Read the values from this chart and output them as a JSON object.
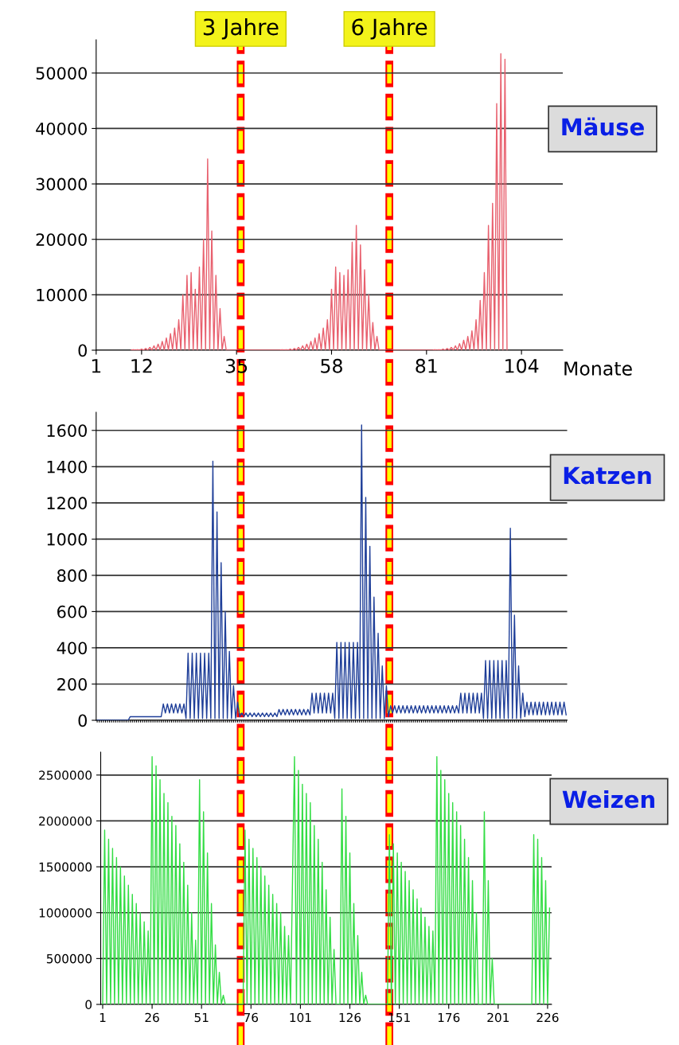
{
  "chart_data": [
    {
      "type": "line",
      "xlabel": "Monate",
      "xlim": [
        1,
        114
      ],
      "xticks": [
        1,
        12,
        35,
        58,
        81,
        104
      ],
      "ylim": [
        0,
        56000
      ],
      "yticks": [
        0,
        10000,
        20000,
        30000,
        40000,
        50000
      ],
      "grid": "y",
      "ref_lines": [
        {
          "axis": "x",
          "value": 36,
          "label": "3 Jahre",
          "color": "#ffff00",
          "line_style": "dashed"
        },
        {
          "axis": "x",
          "value": 72,
          "label": "6 Jahre",
          "color": "#ffff00",
          "line_style": "dashed"
        }
      ],
      "series": [
        {
          "name": "Mäuse",
          "color": "#e8606e",
          "x": [
            9.5,
            10,
            10.5,
            11,
            11.5,
            12,
            12.5,
            13,
            13.5,
            14,
            14.5,
            15,
            15.5,
            16,
            16.5,
            17,
            17.5,
            18,
            18.5,
            19,
            19.5,
            20,
            20.5,
            21,
            21.5,
            22,
            22.5,
            23,
            23.5,
            24,
            24.5,
            25,
            25.5,
            26,
            26.5,
            27,
            27.5,
            28,
            28.5,
            29,
            29.5,
            30,
            30.5,
            31,
            31.5,
            32,
            32.5,
            45.5,
            46,
            46.5,
            47,
            47.5,
            48,
            48.5,
            49,
            49.5,
            50,
            50.5,
            51,
            51.5,
            52,
            52.5,
            53,
            53.5,
            54,
            54.5,
            55,
            55.5,
            56,
            56.5,
            57,
            57.5,
            58,
            58.5,
            59,
            59.5,
            60,
            60.5,
            61,
            61.5,
            62,
            62.5,
            63,
            63.5,
            64,
            64.5,
            65,
            65.5,
            66,
            66.5,
            67,
            67.5,
            68,
            68.5,
            69,
            69.5,
            82.5,
            83,
            83.5,
            84,
            84.5,
            85,
            85.5,
            86,
            86.5,
            87,
            87.5,
            88,
            88.5,
            89,
            89.5,
            90,
            90.5,
            91,
            91.5,
            92,
            92.5,
            93,
            93.5,
            94,
            94.5,
            95,
            95.5,
            96,
            96.5,
            97,
            97.5,
            98,
            98.5,
            99,
            99.5,
            100,
            100.5
          ],
          "values": [
            0,
            100,
            0,
            100,
            0,
            200,
            0,
            300,
            0,
            500,
            0,
            800,
            0,
            1100,
            0,
            1600,
            0,
            2200,
            0,
            3000,
            0,
            4000,
            0,
            5500,
            0,
            10000,
            0,
            13500,
            0,
            14000,
            0,
            11000,
            0,
            15000,
            0,
            20000,
            0,
            34500,
            0,
            21500,
            0,
            13500,
            0,
            7500,
            0,
            2500,
            0,
            0,
            100,
            0,
            100,
            0,
            200,
            0,
            300,
            0,
            500,
            0,
            800,
            0,
            1100,
            0,
            1600,
            0,
            2200,
            0,
            3000,
            0,
            4000,
            0,
            5500,
            0,
            11000,
            0,
            15000,
            0,
            14000,
            0,
            13500,
            0,
            14500,
            0,
            19500,
            0,
            22500,
            0,
            19000,
            0,
            14500,
            0,
            10000,
            0,
            5000,
            0,
            2500,
            0,
            0,
            100,
            0,
            100,
            0,
            200,
            0,
            300,
            0,
            500,
            0,
            800,
            0,
            1200,
            0,
            1800,
            0,
            2500,
            0,
            3500,
            0,
            5500,
            0,
            9000,
            0,
            14000,
            0,
            22500,
            0,
            26500,
            0,
            44500,
            0,
            53500,
            0,
            52500,
            0
          ]
        }
      ]
    },
    {
      "type": "line",
      "ylim": [
        0,
        1700
      ],
      "yticks": [
        0,
        200,
        400,
        600,
        800,
        1000,
        1200,
        1400,
        1600
      ],
      "grid": "y",
      "tick_labels": "y",
      "categories": [
        null,
        null,
        null,
        null,
        null,
        null,
        null,
        null,
        null,
        null,
        null,
        null,
        null,
        null,
        null,
        null,
        null,
        null,
        null,
        null,
        null,
        null,
        null,
        null,
        null,
        null,
        null,
        null,
        null,
        null,
        null,
        null,
        null,
        null,
        null,
        null,
        null,
        null,
        null,
        null,
        null,
        null,
        null,
        null,
        null,
        null,
        null,
        null,
        null,
        null,
        null,
        null,
        null,
        null,
        null,
        null,
        null,
        null,
        null,
        null,
        null,
        null,
        null,
        null,
        null,
        null,
        null,
        null,
        null,
        null,
        null,
        null,
        null,
        null,
        null,
        null,
        null,
        null,
        null,
        null,
        null,
        null,
        null,
        null,
        null,
        null,
        null,
        null,
        null,
        null,
        null,
        null,
        null,
        null,
        null,
        null,
        null,
        null,
        null,
        null,
        null,
        null,
        null,
        null,
        null,
        null,
        null,
        null,
        null,
        null,
        null,
        null,
        null,
        null,
        null,
        null,
        null,
        null,
        null,
        null,
        null,
        null,
        null,
        null,
        null,
        null,
        null,
        null,
        null,
        null,
        null,
        null,
        null,
        null,
        null,
        null,
        null,
        null,
        null,
        null,
        null,
        null,
        null,
        null,
        null,
        null,
        null,
        null,
        null,
        null,
        null,
        null,
        null,
        null,
        null,
        null,
        null,
        null,
        null,
        null,
        null,
        null,
        null,
        null,
        null,
        null,
        null,
        null,
        null,
        null,
        null,
        null,
        null,
        null,
        null,
        null,
        null,
        null,
        null,
        null,
        null,
        null,
        null,
        null,
        null,
        null,
        null,
        null,
        null,
        null,
        null,
        null,
        null,
        null,
        null,
        null,
        null,
        null,
        null,
        null,
        null,
        null,
        null,
        null,
        null,
        null,
        null,
        null,
        null,
        null,
        null,
        null,
        null,
        null,
        null,
        null,
        null,
        null,
        null,
        null,
        null,
        null,
        null,
        null,
        null,
        null,
        null,
        null
      ],
      "series": [
        {
          "name": "Katzen",
          "color": "#1f3f99",
          "values": [
            0,
            0,
            0,
            0,
            0,
            0,
            0,
            0,
            0,
            0,
            0,
            0,
            0,
            0,
            0,
            0,
            20,
            20,
            20,
            20,
            20,
            20,
            20,
            20,
            20,
            20,
            20,
            20,
            20,
            20,
            20,
            20,
            90,
            40,
            90,
            40,
            90,
            40,
            90,
            40,
            90,
            40,
            90,
            10,
            370,
            10,
            370,
            10,
            370,
            10,
            370,
            10,
            370,
            10,
            370,
            10,
            1430,
            10,
            1150,
            10,
            870,
            10,
            600,
            10,
            380,
            10,
            190,
            10,
            100,
            20,
            40,
            20,
            40,
            20,
            40,
            20,
            40,
            20,
            40,
            20,
            40,
            20,
            40,
            20,
            40,
            20,
            40,
            20,
            60,
            30,
            60,
            30,
            60,
            30,
            60,
            30,
            60,
            30,
            60,
            30,
            60,
            30,
            60,
            30,
            150,
            40,
            150,
            40,
            150,
            40,
            150,
            40,
            150,
            40,
            150,
            10,
            430,
            10,
            430,
            10,
            430,
            10,
            430,
            10,
            430,
            10,
            430,
            10,
            1630,
            10,
            1230,
            10,
            960,
            10,
            680,
            10,
            480,
            10,
            300,
            10,
            190,
            20,
            80,
            40,
            80,
            40,
            80,
            40,
            80,
            40,
            80,
            40,
            80,
            40,
            80,
            40,
            80,
            40,
            80,
            40,
            80,
            40,
            80,
            40,
            80,
            40,
            80,
            40,
            80,
            40,
            80,
            40,
            80,
            40,
            80,
            40,
            150,
            40,
            150,
            40,
            150,
            40,
            150,
            40,
            150,
            40,
            150,
            10,
            330,
            10,
            330,
            10,
            330,
            10,
            330,
            10,
            330,
            10,
            330,
            10,
            1060,
            10,
            580,
            10,
            300,
            10,
            150,
            20,
            100,
            30,
            100,
            30,
            100,
            30,
            100,
            30,
            100,
            30,
            100,
            30,
            100,
            30,
            100,
            30,
            100,
            30,
            100,
            30
          ]
        }
      ]
    },
    {
      "type": "line",
      "xlim": [
        0,
        228
      ],
      "xticks": [
        1,
        26,
        51,
        76,
        101,
        126,
        151,
        176,
        201,
        226
      ],
      "ylim": [
        0,
        2750000
      ],
      "yticks": [
        0,
        500000,
        1000000,
        1500000,
        2000000,
        2500000
      ],
      "grid": "y",
      "series": [
        {
          "name": "Weizen",
          "color": "#33dd44",
          "x": [
            1,
            2,
            3,
            4,
            5,
            6,
            7,
            8,
            9,
            10,
            11,
            12,
            13,
            14,
            15,
            16,
            17,
            18,
            19,
            20,
            21,
            22,
            23,
            24,
            25,
            26,
            27,
            28,
            29,
            30,
            31,
            32,
            33,
            34,
            35,
            36,
            37,
            38,
            39,
            40,
            41,
            42,
            43,
            44,
            45,
            46,
            47,
            48,
            49,
            50,
            51,
            52,
            53,
            54,
            55,
            56,
            57,
            58,
            59,
            60,
            61,
            62,
            63,
            72,
            73,
            74,
            75,
            76,
            77,
            78,
            79,
            80,
            81,
            82,
            83,
            84,
            85,
            86,
            87,
            88,
            89,
            90,
            91,
            92,
            93,
            94,
            95,
            96,
            98,
            99,
            100,
            101,
            102,
            103,
            104,
            105,
            106,
            107,
            108,
            109,
            110,
            111,
            112,
            113,
            114,
            115,
            116,
            117,
            118,
            119,
            121,
            122,
            123,
            124,
            125,
            126,
            127,
            128,
            129,
            130,
            131,
            132,
            133,
            134,
            135,
            145,
            146,
            147,
            148,
            149,
            150,
            151,
            152,
            153,
            154,
            155,
            156,
            157,
            158,
            159,
            160,
            161,
            162,
            163,
            164,
            165,
            166,
            167,
            168,
            169,
            170,
            171,
            172,
            173,
            174,
            175,
            176,
            177,
            178,
            179,
            180,
            181,
            182,
            183,
            184,
            185,
            186,
            187,
            188,
            189,
            190,
            191,
            193,
            194,
            195,
            196,
            197,
            198,
            199,
            218,
            219,
            220,
            221,
            222,
            223,
            224,
            225,
            226,
            227
          ],
          "values": [
            0,
            1900000,
            0,
            1800000,
            0,
            1700000,
            0,
            1600000,
            0,
            1500000,
            0,
            1400000,
            0,
            1300000,
            0,
            1200000,
            0,
            1100000,
            0,
            1000000,
            0,
            900000,
            0,
            800000,
            0,
            2700000,
            0,
            2600000,
            0,
            2450000,
            0,
            2300000,
            0,
            2200000,
            0,
            2050000,
            0,
            1950000,
            0,
            1750000,
            0,
            1550000,
            0,
            1300000,
            0,
            1000000,
            0,
            700000,
            0,
            2450000,
            0,
            2100000,
            0,
            1650000,
            0,
            1100000,
            0,
            650000,
            0,
            350000,
            0,
            100000,
            0,
            0,
            1900000,
            0,
            1800000,
            0,
            1700000,
            0,
            1600000,
            0,
            1500000,
            0,
            1400000,
            0,
            1300000,
            0,
            1200000,
            0,
            1100000,
            0,
            1000000,
            0,
            850000,
            0,
            750000,
            0,
            2700000,
            0,
            2550000,
            0,
            2400000,
            0,
            2300000,
            0,
            2200000,
            0,
            1950000,
            0,
            1800000,
            0,
            1550000,
            0,
            1250000,
            0,
            950000,
            0,
            600000,
            0,
            0,
            2350000,
            0,
            2050000,
            0,
            1650000,
            0,
            1100000,
            0,
            750000,
            0,
            350000,
            0,
            100000,
            0,
            0,
            1850000,
            0,
            1750000,
            0,
            1650000,
            0,
            1550000,
            0,
            1450000,
            0,
            1350000,
            0,
            1250000,
            0,
            1150000,
            0,
            1050000,
            0,
            950000,
            0,
            850000,
            0,
            800000,
            0,
            2700000,
            0,
            2550000,
            0,
            2450000,
            0,
            2300000,
            0,
            2200000,
            0,
            2100000,
            0,
            1950000,
            0,
            1800000,
            0,
            1600000,
            0,
            1350000,
            0,
            1000000,
            0,
            0,
            2100000,
            0,
            1350000,
            0,
            500000,
            0,
            0,
            1850000,
            0,
            1800000,
            0,
            1600000,
            0,
            1350000,
            0,
            1050000
          ]
        }
      ]
    }
  ]
}
